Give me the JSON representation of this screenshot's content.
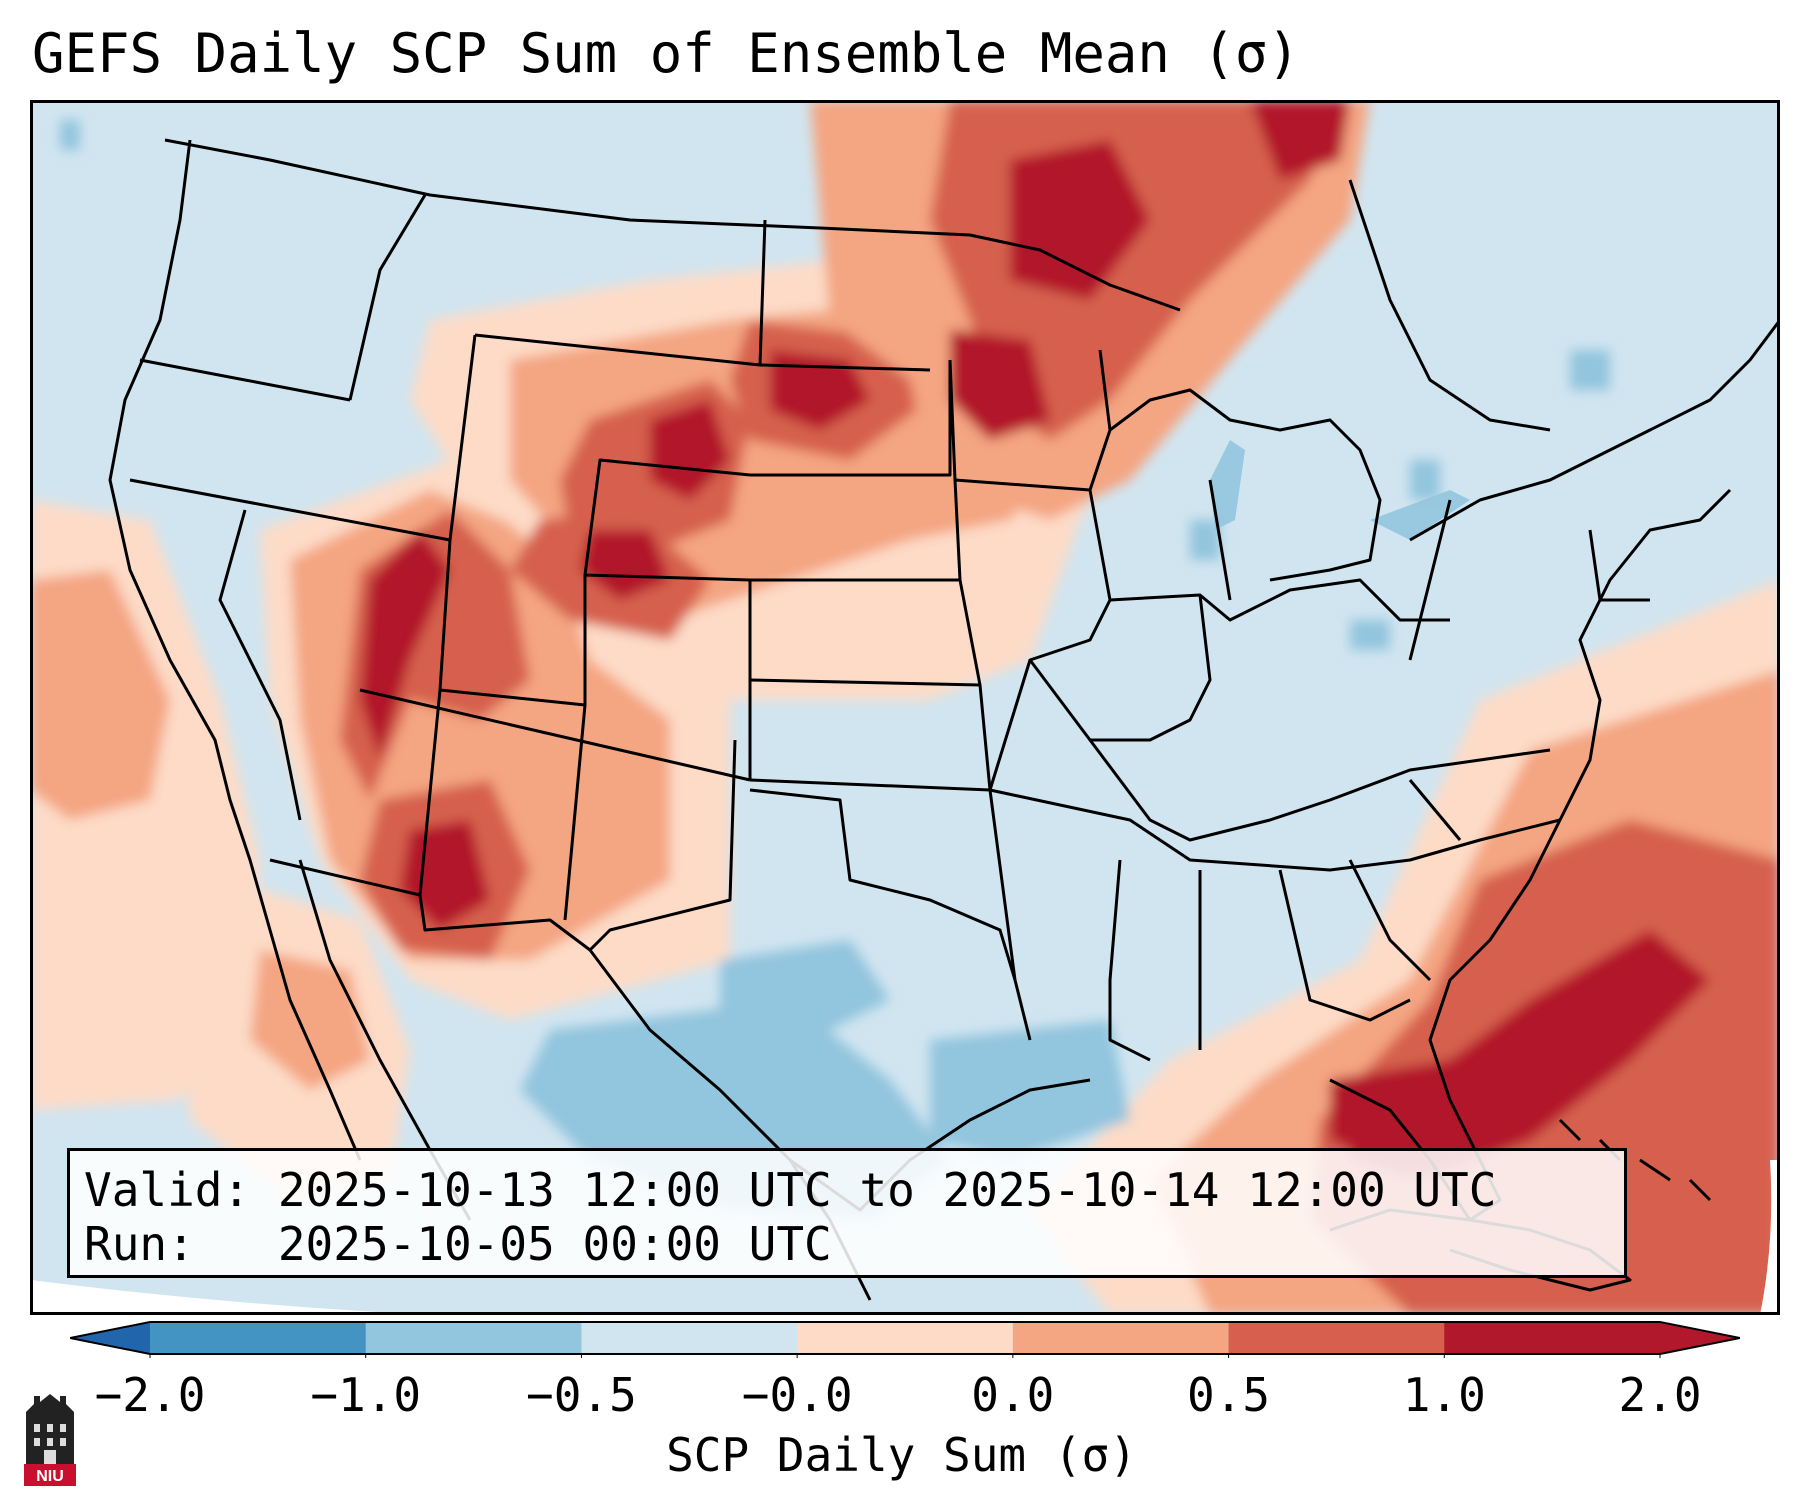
{
  "title": "GEFS Daily SCP Sum of Ensemble Mean (σ)",
  "info": {
    "valid": "Valid: 2025-10-13 12:00 UTC to 2025-10-14 12:00 UTC",
    "run": "Run:   2025-10-05 00:00 UTC"
  },
  "colorbar": {
    "label": "SCP Daily Sum (σ)",
    "ticks": [
      "−2.0",
      "−1.0",
      "−0.5",
      "−0.0",
      "0.0",
      "0.5",
      "1.0",
      "2.0"
    ],
    "colors": [
      "#4393c3",
      "#92c5de",
      "#d1e5f0",
      "#fddbc7",
      "#f4a582",
      "#d6604d",
      "#b2182b"
    ]
  },
  "logo": {
    "text": "NIU"
  }
}
